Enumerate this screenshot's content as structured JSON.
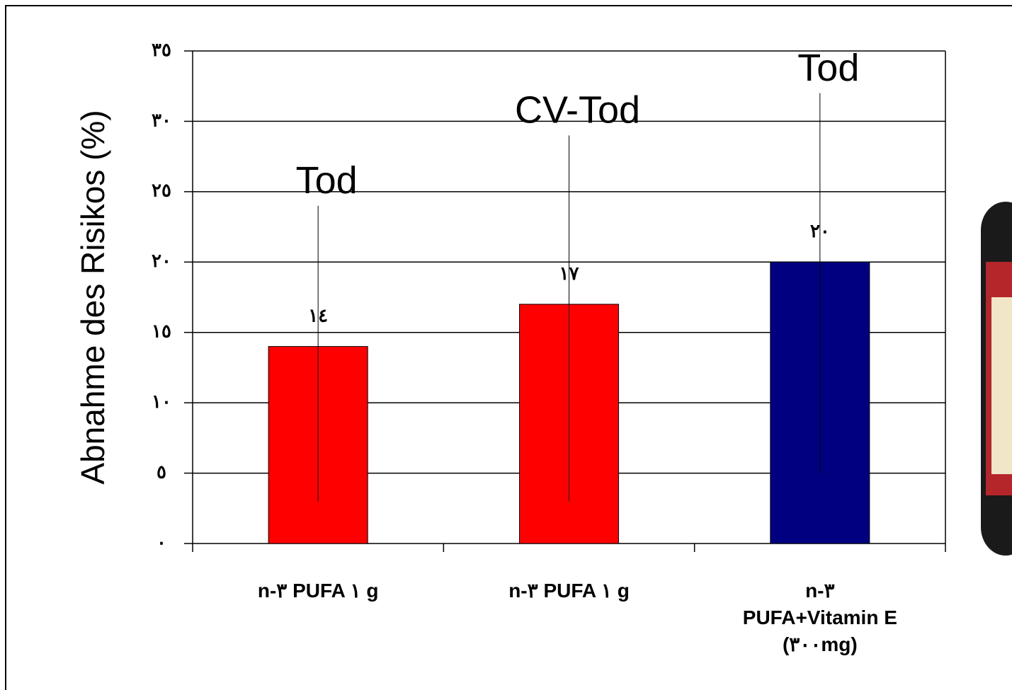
{
  "chart_data": {
    "type": "bar",
    "y_label": "Abnahme des Risikos (%)",
    "categories": [
      "n-٣ PUFA ١ g",
      "n-٣ PUFA ١ g",
      "n-٣\nPUFA+Vitamin E\n(٣٠٠mg)"
    ],
    "values": [
      14,
      17,
      20
    ],
    "value_labels": [
      "١٤",
      "١٧",
      "٢٠"
    ],
    "colors": [
      "#ff0000",
      "#ff0000",
      "#000080"
    ],
    "lower": [
      3,
      3,
      5
    ],
    "upper": [
      24,
      29,
      32
    ],
    "annotations": [
      "Tod",
      "CV-Tod",
      "Tod"
    ],
    "ylim": [
      0,
      35
    ],
    "yticks": [
      {
        "value": 0,
        "label": "٠"
      },
      {
        "value": 5,
        "label": "٥"
      },
      {
        "value": 10,
        "label": "١٠"
      },
      {
        "value": 15,
        "label": "١٥"
      },
      {
        "value": 20,
        "label": "٢٠"
      },
      {
        "value": 25,
        "label": "٢٥"
      },
      {
        "value": 30,
        "label": "٣٠"
      },
      {
        "value": 35,
        "label": "٣٥"
      }
    ],
    "grid": true
  }
}
